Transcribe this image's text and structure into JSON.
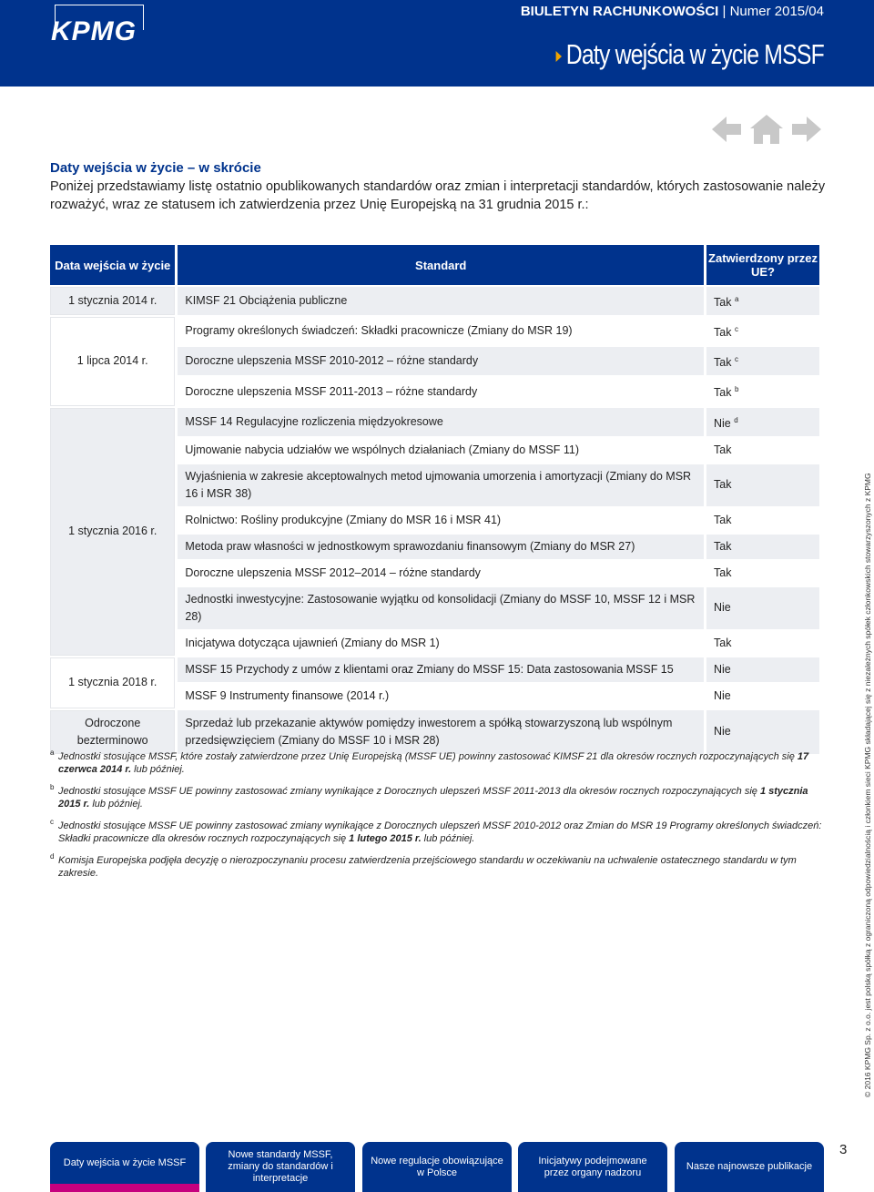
{
  "header": {
    "logo": "KPMG",
    "bulletin": "BIULETYN RACHUNKOWOŚCI",
    "separator": "|",
    "issue": "Numer 2015/04",
    "section_title": "Daty wejścia w życie MSSF"
  },
  "intro": {
    "heading": "Daty wejścia w życie – w skrócie",
    "text": "Poniżej przedstawiamy listę ostatnio opublikowanych standardów oraz zmian i interpretacji standardów, których zastosowanie należy rozważyć, wraz ze statusem ich zatwierdzenia przez Unię Europejską na 31 grudnia 2015 r.:"
  },
  "table": {
    "headers": [
      "Data wejścia w życie",
      "Standard",
      "Zatwierdzony przez UE?"
    ],
    "groups": [
      {
        "date": "1 stycznia 2014 r.",
        "rows": [
          {
            "standard": "KIMSF 21 Obciążenia publiczne",
            "status": "Tak",
            "note": "a"
          }
        ]
      },
      {
        "date": "1 lipca 2014 r.",
        "rows": [
          {
            "standard": "Programy określonych świadczeń: Składki pracownicze (Zmiany do MSR 19)",
            "status": "Tak",
            "note": "c"
          },
          {
            "standard": "Doroczne ulepszenia MSSF 2010-2012 – różne standardy",
            "status": "Tak",
            "note": "c"
          },
          {
            "standard": "Doroczne ulepszenia MSSF 2011-2013 – różne standardy",
            "status": "Tak",
            "note": "b"
          }
        ]
      },
      {
        "date": "1 stycznia 2016 r.",
        "rows": [
          {
            "standard": "MSSF 14 Regulacyjne rozliczenia międzyokresowe",
            "status": "Nie",
            "note": "d"
          },
          {
            "standard": "Ujmowanie nabycia udziałów we wspólnych działaniach (Zmiany do MSSF 11)",
            "status": "Tak"
          },
          {
            "standard": "Wyjaśnienia w zakresie akceptowalnych metod ujmowania umorzenia i amortyzacji (Zmiany do MSR 16 i MSR 38)",
            "status": "Tak"
          },
          {
            "standard": "Rolnictwo: Rośliny produkcyjne (Zmiany do MSR 16 i MSR 41)",
            "status": "Tak"
          },
          {
            "standard": "Metoda praw własności w jednostkowym sprawozdaniu finansowym (Zmiany do MSR 27)",
            "status": "Tak"
          },
          {
            "standard": "Doroczne ulepszenia MSSF 2012–2014 – różne standardy",
            "status": "Tak"
          },
          {
            "standard": "Jednostki inwestycyjne: Zastosowanie wyjątku od konsolidacji (Zmiany do MSSF 10, MSSF 12 i MSR 28)",
            "status": "Nie"
          },
          {
            "standard": "Inicjatywa dotycząca ujawnień (Zmiany do MSR 1)",
            "status": "Tak"
          }
        ]
      },
      {
        "date": "1 stycznia 2018 r.",
        "rows": [
          {
            "standard": "MSSF 15 Przychody z umów z klientami oraz Zmiany do MSSF 15: Data zastosowania MSSF 15",
            "status": "Nie"
          },
          {
            "standard": "MSSF 9 Instrumenty finansowe (2014 r.)",
            "status": "Nie"
          }
        ]
      },
      {
        "date": "Odroczone bezterminowo",
        "rows": [
          {
            "standard": "Sprzedaż lub przekazanie aktywów pomiędzy inwestorem a spółką stowarzyszoną lub wspólnym przedsięwzięciem (Zmiany do MSSF 10 i MSR 28)",
            "status": "Nie"
          }
        ]
      }
    ]
  },
  "footnotes": [
    {
      "mark": "a",
      "text": "Jednostki stosujące MSSF, które zostały zatwierdzone przez Unię Europejską (MSSF UE) powinny zastosować KIMSF 21 dla okresów rocznych rozpoczynających się ",
      "bold": "17 czerwca 2014 r.",
      "after": " lub później."
    },
    {
      "mark": "b",
      "text": "Jednostki stosujące MSSF UE powinny zastosować zmiany wynikające z Dorocznych ulepszeń MSSF 2011-2013 dla okresów rocznych rozpoczynających się ",
      "bold": "1 stycznia 2015 r.",
      "after": " lub później."
    },
    {
      "mark": "c",
      "text": "Jednostki stosujące MSSF UE powinny zastosować zmiany wynikające z Dorocznych ulepszeń MSSF 2010-2012 oraz Zmian do MSR 19 Programy określonych świadczeń: Składki pracownicze dla okresów rocznych rozpoczynających się ",
      "bold": "1 lutego 2015 r.",
      "after": " lub później."
    },
    {
      "mark": "d",
      "text": "Komisja Europejska podjęła decyzję o nierozpoczynaniu procesu zatwierdzenia przejściowego standardu w oczekiwaniu na uchwalenie ostatecznego standardu w tym zakresie."
    }
  ],
  "side_note": [
    "© 2016 KPMG Sp. z o.o. jest polską spółką z ograniczoną odpowiedzialnością i członkiem sieci KPMG składającej się z niezależnych spółek członkowskich stowarzyszonych z KPMG International",
    "Cooperative (“KPMG International”), podmiotem prawa szwajcarskiego. Wszelkie prawa zastrzeżone."
  ],
  "page_number": "3",
  "nav": [
    "Daty wejścia w życie MSSF",
    "Nowe standardy MSSF, zmiany do standardów i interpretacje",
    "Nowe regulacje obowiązujące w Polsce",
    "Inicjatywy podejmowane przez organy nadzoru",
    "Nasze najnowsze publikacje"
  ]
}
